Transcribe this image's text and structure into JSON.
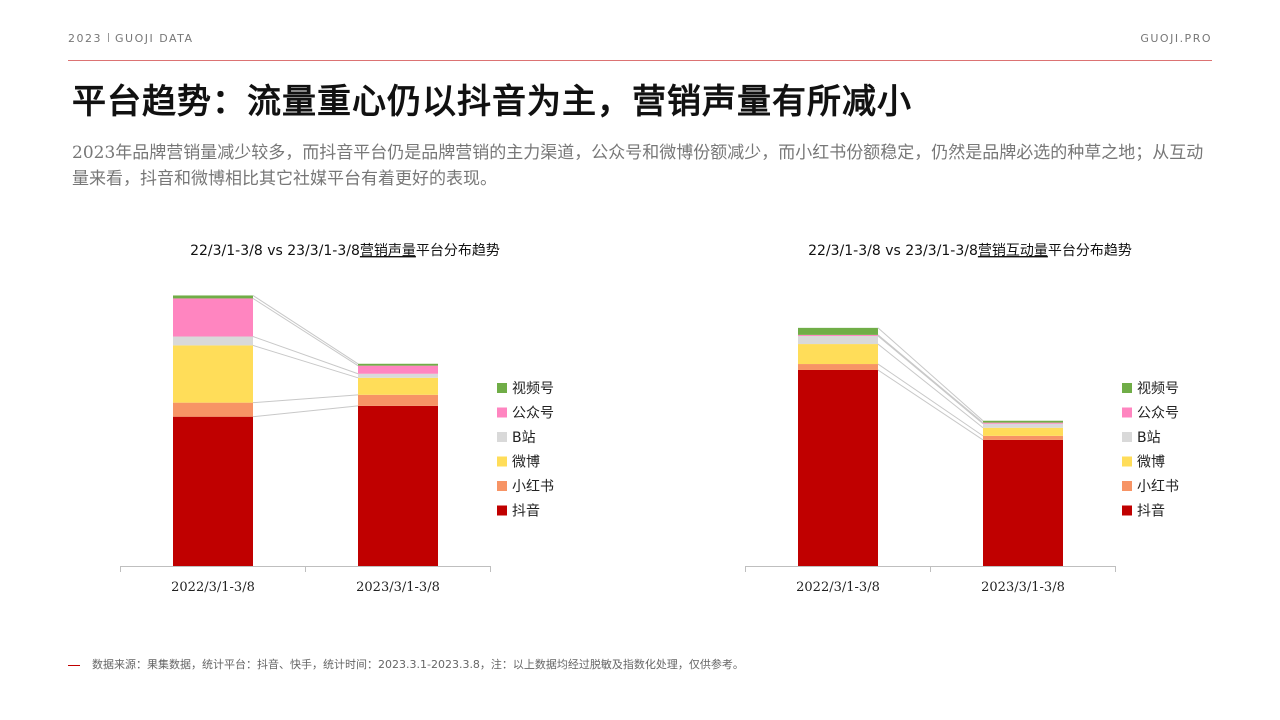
{
  "header": {
    "year": "2023",
    "brand": "GUOJI DATA",
    "site": "GUOJI.PRO"
  },
  "title": "平台趋势：流量重心仍以抖音为主，营销声量有所减小",
  "subtitle": "2023年品牌营销量减少较多，而抖音平台仍是品牌营销的主力渠道，公众号和微博份额减少，而小红书份额稳定，仍然是品牌必选的种草之地；从互动量来看，抖音和微博相比其它社媒平台有着更好的表现。",
  "footer": "数据来源：果集数据，统计平台：抖音、快手，统计时间：2023.3.1-2023.3.8，注：以上数据均经过脱敏及指数化处理，仅供参考。",
  "chart_data": [
    {
      "type": "bar",
      "stacked": true,
      "title_prefix": "22/3/1-3/8 vs 23/3/1-3/8",
      "title_emph": "营销声量",
      "title_suffix": "平台分布趋势",
      "categories": [
        "2022/3/1-3/8",
        "2023/3/1-3/8"
      ],
      "ylim": [
        0,
        100
      ],
      "legend_position": "right",
      "connector_lines": true,
      "series": [
        {
          "name": "抖音",
          "color": "#C00000",
          "values": [
            55.3,
            59.3
          ]
        },
        {
          "name": "小红书",
          "color": "#F79465",
          "values": [
            5.2,
            4.1
          ]
        },
        {
          "name": "微博",
          "color": "#FFDD59",
          "values": [
            21.2,
            6.3
          ]
        },
        {
          "name": "B站",
          "color": "#D9D9D9",
          "values": [
            3.3,
            1.5
          ]
        },
        {
          "name": "公众号",
          "color": "#FF85C0",
          "values": [
            14.1,
            3.0
          ]
        },
        {
          "name": "视频号",
          "color": "#70AD47",
          "values": [
            1.1,
            0.7
          ]
        }
      ]
    },
    {
      "type": "bar",
      "stacked": true,
      "title_prefix": "22/3/1-3/8 vs 23/3/1-3/8",
      "title_emph": "营销互动量",
      "title_suffix": "平台分布趋势",
      "categories": [
        "2022/3/1-3/8",
        "2023/3/1-3/8"
      ],
      "ylim": [
        0,
        100
      ],
      "legend_position": "right",
      "connector_lines": true,
      "series": [
        {
          "name": "抖音",
          "color": "#C00000",
          "values": [
            72.6,
            46.7
          ]
        },
        {
          "name": "小红书",
          "color": "#F79465",
          "values": [
            2.2,
            1.5
          ]
        },
        {
          "name": "微博",
          "color": "#FFDD59",
          "values": [
            7.4,
            3.0
          ]
        },
        {
          "name": "B站",
          "color": "#D9D9D9",
          "values": [
            3.0,
            1.5
          ]
        },
        {
          "name": "公众号",
          "color": "#FF85C0",
          "values": [
            0.4,
            0.4
          ]
        },
        {
          "name": "视频号",
          "color": "#70AD47",
          "values": [
            2.6,
            0.7
          ]
        }
      ]
    }
  ]
}
